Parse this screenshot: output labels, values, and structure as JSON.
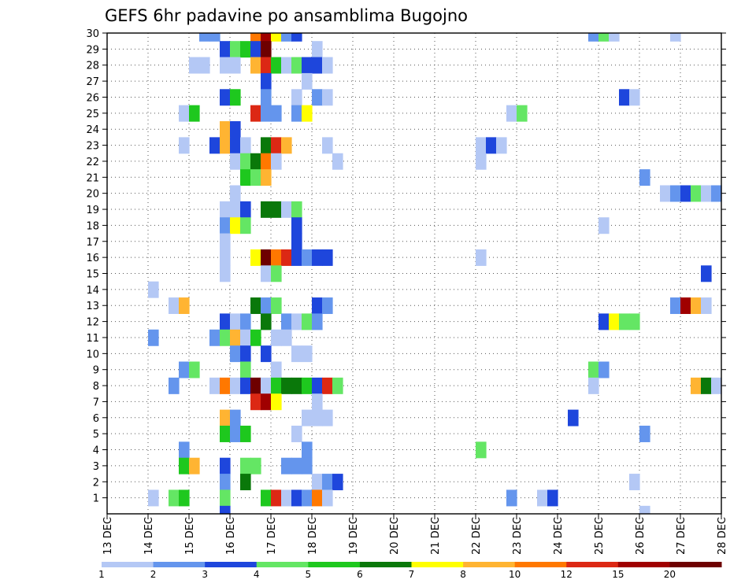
{
  "chart_data": {
    "type": "heatmap",
    "title": "GEFS 6hr padavine po ansamblima Bugojno",
    "xlabel": "",
    "ylabel": "",
    "x_range": [
      0,
      60
    ],
    "y_range": [
      0,
      30
    ],
    "grid": true,
    "x_ticks": [
      {
        "x": 0,
        "label": "13 DEC"
      },
      {
        "x": 4,
        "label": "14 DEC"
      },
      {
        "x": 8,
        "label": "15 DEC"
      },
      {
        "x": 12,
        "label": "16 DEC"
      },
      {
        "x": 16,
        "label": "17 DEC"
      },
      {
        "x": 20,
        "label": "18 DEC"
      },
      {
        "x": 24,
        "label": "19 DEC"
      },
      {
        "x": 28,
        "label": "20 DEC"
      },
      {
        "x": 32,
        "label": "21 DEC"
      },
      {
        "x": 36,
        "label": "22 DEC"
      },
      {
        "x": 40,
        "label": "23 DEC"
      },
      {
        "x": 44,
        "label": "24 DEC"
      },
      {
        "x": 48,
        "label": "25 DEC"
      },
      {
        "x": 52,
        "label": "26 DEC"
      },
      {
        "x": 56,
        "label": "27 DEC"
      },
      {
        "x": 60,
        "label": "28 DEC"
      }
    ],
    "y_ticks": [
      1,
      2,
      3,
      4,
      5,
      6,
      7,
      8,
      9,
      10,
      11,
      12,
      13,
      14,
      15,
      16,
      17,
      18,
      19,
      20,
      21,
      22,
      23,
      24,
      25,
      26,
      27,
      28,
      29,
      30
    ],
    "colorbar": {
      "colors": [
        "#b4c8f5",
        "#6495ed",
        "#1e46dc",
        "#64e664",
        "#1ec81e",
        "#0a780a",
        "#ffff00",
        "#ffb432",
        "#ff7800",
        "#dc2814",
        "#a00000",
        "#6e0000"
      ],
      "labels": [
        "1",
        "2",
        "3",
        "4",
        "5",
        "6",
        "7",
        "8",
        "10",
        "12",
        "15",
        "20"
      ]
    },
    "cells": [
      [
        9,
        30,
        1
      ],
      [
        10,
        30,
        1
      ],
      [
        14,
        30,
        8
      ],
      [
        15,
        30,
        10
      ],
      [
        16,
        30,
        6
      ],
      [
        17,
        30,
        1
      ],
      [
        18,
        30,
        2
      ],
      [
        47,
        30,
        1
      ],
      [
        48,
        30,
        3
      ],
      [
        49,
        30,
        0
      ],
      [
        55,
        30,
        0
      ],
      [
        11,
        29,
        2
      ],
      [
        12,
        29,
        3
      ],
      [
        13,
        29,
        4
      ],
      [
        14,
        29,
        2
      ],
      [
        15,
        29,
        11
      ],
      [
        20,
        29,
        0
      ],
      [
        8,
        28,
        0
      ],
      [
        9,
        28,
        0
      ],
      [
        11,
        28,
        0
      ],
      [
        12,
        28,
        0
      ],
      [
        14,
        28,
        7
      ],
      [
        15,
        28,
        9
      ],
      [
        16,
        28,
        4
      ],
      [
        17,
        28,
        0
      ],
      [
        18,
        28,
        3
      ],
      [
        19,
        28,
        2
      ],
      [
        20,
        28,
        2
      ],
      [
        21,
        28,
        0
      ],
      [
        15,
        27,
        2
      ],
      [
        19,
        27,
        0
      ],
      [
        11,
        26,
        2
      ],
      [
        12,
        26,
        4
      ],
      [
        15,
        26,
        1
      ],
      [
        18,
        26,
        0
      ],
      [
        20,
        26,
        1
      ],
      [
        21,
        26,
        0
      ],
      [
        50,
        26,
        2
      ],
      [
        51,
        26,
        0
      ],
      [
        7,
        25,
        0
      ],
      [
        8,
        25,
        4
      ],
      [
        14,
        25,
        9
      ],
      [
        15,
        25,
        1
      ],
      [
        16,
        25,
        1
      ],
      [
        18,
        25,
        1
      ],
      [
        19,
        25,
        6
      ],
      [
        39,
        25,
        0
      ],
      [
        40,
        25,
        3
      ],
      [
        60,
        25,
        1
      ],
      [
        11,
        24,
        7
      ],
      [
        12,
        24,
        2
      ],
      [
        7,
        23,
        0
      ],
      [
        10,
        23,
        2
      ],
      [
        11,
        23,
        7
      ],
      [
        12,
        23,
        2
      ],
      [
        13,
        23,
        0
      ],
      [
        15,
        23,
        5
      ],
      [
        16,
        23,
        9
      ],
      [
        17,
        23,
        7
      ],
      [
        21,
        23,
        0
      ],
      [
        36,
        23,
        0
      ],
      [
        37,
        23,
        2
      ],
      [
        38,
        23,
        0
      ],
      [
        12,
        22,
        0
      ],
      [
        13,
        22,
        3
      ],
      [
        14,
        22,
        5
      ],
      [
        15,
        22,
        8
      ],
      [
        16,
        22,
        0
      ],
      [
        22,
        22,
        0
      ],
      [
        36,
        22,
        0
      ],
      [
        13,
        21,
        4
      ],
      [
        14,
        21,
        3
      ],
      [
        15,
        21,
        7
      ],
      [
        52,
        21,
        1
      ],
      [
        12,
        20,
        0
      ],
      [
        54,
        20,
        0
      ],
      [
        55,
        20,
        1
      ],
      [
        56,
        20,
        2
      ],
      [
        57,
        20,
        3
      ],
      [
        58,
        20,
        0
      ],
      [
        59,
        20,
        1
      ],
      [
        60,
        20,
        2
      ],
      [
        11,
        19,
        0
      ],
      [
        12,
        19,
        0
      ],
      [
        13,
        19,
        2
      ],
      [
        15,
        19,
        5
      ],
      [
        16,
        19,
        5
      ],
      [
        17,
        19,
        0
      ],
      [
        18,
        19,
        3
      ],
      [
        11,
        18,
        1
      ],
      [
        12,
        18,
        6
      ],
      [
        13,
        18,
        3
      ],
      [
        18,
        18,
        2
      ],
      [
        48,
        18,
        0
      ],
      [
        11,
        17,
        0
      ],
      [
        18,
        17,
        2
      ],
      [
        11,
        16,
        0
      ],
      [
        14,
        16,
        6
      ],
      [
        15,
        16,
        11
      ],
      [
        16,
        16,
        8
      ],
      [
        17,
        16,
        9
      ],
      [
        18,
        16,
        2
      ],
      [
        19,
        16,
        1
      ],
      [
        20,
        16,
        2
      ],
      [
        21,
        16,
        2
      ],
      [
        36,
        16,
        0
      ],
      [
        11,
        15,
        0
      ],
      [
        15,
        15,
        0
      ],
      [
        16,
        15,
        3
      ],
      [
        58,
        15,
        2
      ],
      [
        4,
        14,
        0
      ],
      [
        6,
        13,
        0
      ],
      [
        7,
        13,
        7
      ],
      [
        14,
        13,
        5
      ],
      [
        15,
        13,
        1
      ],
      [
        16,
        13,
        3
      ],
      [
        20,
        13,
        2
      ],
      [
        21,
        13,
        1
      ],
      [
        55,
        13,
        1
      ],
      [
        56,
        13,
        10
      ],
      [
        57,
        13,
        7
      ],
      [
        58,
        13,
        0
      ],
      [
        11,
        12,
        2
      ],
      [
        12,
        12,
        0
      ],
      [
        13,
        12,
        1
      ],
      [
        15,
        12,
        5
      ],
      [
        17,
        12,
        1
      ],
      [
        18,
        12,
        0
      ],
      [
        19,
        12,
        3
      ],
      [
        20,
        12,
        1
      ],
      [
        48,
        12,
        2
      ],
      [
        49,
        12,
        6
      ],
      [
        50,
        12,
        3
      ],
      [
        51,
        12,
        3
      ],
      [
        4,
        11,
        1
      ],
      [
        10,
        11,
        1
      ],
      [
        11,
        11,
        3
      ],
      [
        12,
        11,
        7
      ],
      [
        13,
        11,
        0
      ],
      [
        14,
        11,
        4
      ],
      [
        16,
        11,
        0
      ],
      [
        17,
        11,
        0
      ],
      [
        12,
        10,
        1
      ],
      [
        13,
        10,
        2
      ],
      [
        15,
        10,
        2
      ],
      [
        18,
        10,
        0
      ],
      [
        19,
        10,
        0
      ],
      [
        7,
        9,
        1
      ],
      [
        8,
        9,
        3
      ],
      [
        13,
        9,
        3
      ],
      [
        16,
        9,
        0
      ],
      [
        47,
        9,
        3
      ],
      [
        48,
        9,
        1
      ],
      [
        6,
        8,
        1
      ],
      [
        10,
        8,
        0
      ],
      [
        11,
        8,
        8
      ],
      [
        12,
        8,
        0
      ],
      [
        13,
        8,
        2
      ],
      [
        14,
        8,
        11
      ],
      [
        15,
        8,
        0
      ],
      [
        16,
        8,
        4
      ],
      [
        17,
        8,
        5
      ],
      [
        18,
        8,
        5
      ],
      [
        19,
        8,
        4
      ],
      [
        20,
        8,
        2
      ],
      [
        21,
        8,
        9
      ],
      [
        22,
        8,
        3
      ],
      [
        47,
        8,
        0
      ],
      [
        57,
        8,
        7
      ],
      [
        58,
        8,
        5
      ],
      [
        59,
        8,
        0
      ],
      [
        14,
        7,
        9
      ],
      [
        15,
        7,
        10
      ],
      [
        16,
        7,
        6
      ],
      [
        20,
        7,
        0
      ],
      [
        11,
        6,
        7
      ],
      [
        12,
        6,
        1
      ],
      [
        19,
        6,
        0
      ],
      [
        20,
        6,
        0
      ],
      [
        21,
        6,
        0
      ],
      [
        45,
        6,
        2
      ],
      [
        11,
        5,
        4
      ],
      [
        12,
        5,
        1
      ],
      [
        13,
        5,
        4
      ],
      [
        18,
        5,
        0
      ],
      [
        52,
        5,
        1
      ],
      [
        7,
        4,
        1
      ],
      [
        19,
        4,
        1
      ],
      [
        36,
        4,
        3
      ],
      [
        7,
        3,
        4
      ],
      [
        8,
        3,
        7
      ],
      [
        11,
        3,
        2
      ],
      [
        13,
        3,
        3
      ],
      [
        14,
        3,
        3
      ],
      [
        17,
        3,
        1
      ],
      [
        18,
        3,
        1
      ],
      [
        19,
        3,
        1
      ],
      [
        11,
        2,
        1
      ],
      [
        13,
        2,
        5
      ],
      [
        20,
        2,
        0
      ],
      [
        21,
        2,
        1
      ],
      [
        22,
        2,
        2
      ],
      [
        51,
        2,
        0
      ],
      [
        4,
        1,
        0
      ],
      [
        6,
        1,
        3
      ],
      [
        7,
        1,
        4
      ],
      [
        11,
        1,
        3
      ],
      [
        15,
        1,
        4
      ],
      [
        16,
        1,
        9
      ],
      [
        17,
        1,
        0
      ],
      [
        18,
        1,
        2
      ],
      [
        19,
        1,
        1
      ],
      [
        20,
        1,
        8
      ],
      [
        21,
        1,
        0
      ],
      [
        39,
        1,
        1
      ],
      [
        42,
        1,
        0
      ],
      [
        43,
        1,
        2
      ],
      [
        11,
        0,
        2
      ],
      [
        52,
        0,
        0
      ]
    ]
  }
}
